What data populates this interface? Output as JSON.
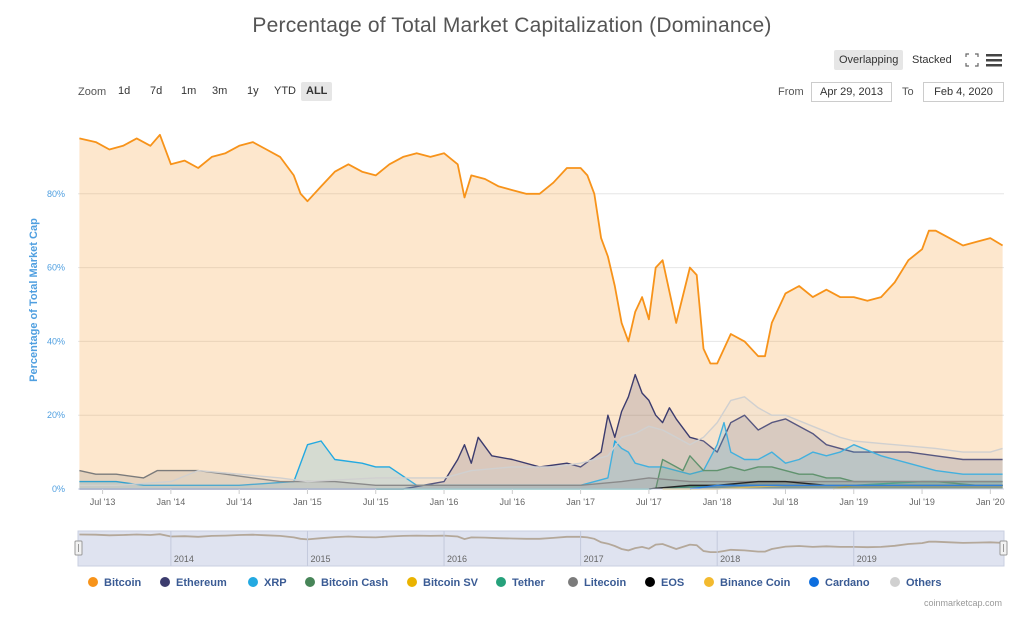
{
  "chart_data": {
    "type": "area",
    "title": "Percentage of Total Market Capitalization (Dominance)",
    "ylabel": "Percentage of Total Market Cap",
    "xlabel": "",
    "ylim": [
      0,
      100
    ],
    "y_ticks": [
      "0%",
      "20%",
      "40%",
      "60%",
      "80%"
    ],
    "y_tick_values": [
      0,
      20,
      40,
      60,
      80
    ],
    "x_ticks": [
      "Jul '13",
      "Jan '14",
      "Jul '14",
      "Jan '15",
      "Jul '15",
      "Jan '16",
      "Jul '16",
      "Jan '17",
      "Jul '17",
      "Jan '18",
      "Jul '18",
      "Jan '19",
      "Jul '19",
      "Jan '20"
    ],
    "x_tick_values": [
      2013.5,
      2014.0,
      2014.5,
      2015.0,
      2015.5,
      2016.0,
      2016.5,
      2017.0,
      2017.5,
      2018.0,
      2018.5,
      2019.0,
      2019.5,
      2020.0
    ],
    "xlim": [
      2013.32,
      2020.1
    ],
    "grid": true,
    "legend_position": "bottom",
    "series": [
      {
        "name": "Bitcoin",
        "color": "#f7931a",
        "x": [
          2013.33,
          2013.45,
          2013.55,
          2013.65,
          2013.75,
          2013.85,
          2013.92,
          2014.0,
          2014.1,
          2014.2,
          2014.3,
          2014.4,
          2014.5,
          2014.6,
          2014.7,
          2014.8,
          2014.9,
          2014.95,
          2015.0,
          2015.1,
          2015.2,
          2015.3,
          2015.4,
          2015.5,
          2015.6,
          2015.7,
          2015.8,
          2015.9,
          2016.0,
          2016.1,
          2016.15,
          2016.2,
          2016.3,
          2016.4,
          2016.5,
          2016.6,
          2016.7,
          2016.8,
          2016.9,
          2017.0,
          2017.05,
          2017.1,
          2017.15,
          2017.2,
          2017.25,
          2017.3,
          2017.35,
          2017.4,
          2017.45,
          2017.5,
          2017.55,
          2017.6,
          2017.7,
          2017.8,
          2017.85,
          2017.9,
          2017.95,
          2018.0,
          2018.05,
          2018.1,
          2018.2,
          2018.3,
          2018.35,
          2018.4,
          2018.5,
          2018.6,
          2018.7,
          2018.8,
          2018.9,
          2019.0,
          2019.1,
          2019.2,
          2019.3,
          2019.4,
          2019.5,
          2019.55,
          2019.6,
          2019.7,
          2019.8,
          2019.9,
          2020.0,
          2020.09
        ],
        "values": [
          95,
          94,
          92,
          93,
          95,
          93,
          96,
          88,
          89,
          87,
          90,
          91,
          93,
          94,
          92,
          90,
          85,
          80,
          78,
          82,
          86,
          88,
          86,
          85,
          88,
          90,
          91,
          90,
          91,
          88,
          79,
          85,
          84,
          82,
          81,
          80,
          80,
          83,
          87,
          87,
          85,
          80,
          68,
          63,
          55,
          45,
          40,
          48,
          52,
          46,
          60,
          62,
          45,
          60,
          58,
          38,
          34,
          34,
          38,
          42,
          40,
          36,
          36,
          45,
          53,
          55,
          52,
          54,
          52,
          52,
          51,
          52,
          56,
          62,
          65,
          70,
          70,
          68,
          66,
          67,
          68,
          66
        ]
      },
      {
        "name": "Ethereum",
        "color": "#3c3c6e",
        "x": [
          2013.33,
          2013.6,
          2014.0,
          2014.5,
          2015.0,
          2015.5,
          2015.7,
          2016.0,
          2016.1,
          2016.15,
          2016.2,
          2016.25,
          2016.35,
          2016.5,
          2016.7,
          2016.9,
          2017.0,
          2017.15,
          2017.2,
          2017.25,
          2017.3,
          2017.35,
          2017.4,
          2017.45,
          2017.5,
          2017.55,
          2017.6,
          2017.65,
          2017.7,
          2017.8,
          2017.9,
          2018.0,
          2018.1,
          2018.2,
          2018.3,
          2018.4,
          2018.5,
          2018.6,
          2018.7,
          2018.8,
          2018.9,
          2019.0,
          2019.2,
          2019.4,
          2019.6,
          2019.8,
          2020.0,
          2020.09
        ],
        "values": [
          0,
          0,
          0,
          0,
          0,
          0,
          0,
          2,
          8,
          12,
          7,
          14,
          9,
          8,
          6,
          7,
          6,
          10,
          20,
          14,
          21,
          25,
          31,
          26,
          24,
          20,
          18,
          22,
          19,
          14,
          13,
          10,
          18,
          20,
          16,
          18,
          19,
          17,
          15,
          12,
          11,
          10,
          10,
          10,
          9,
          8,
          8,
          8
        ]
      },
      {
        "name": "XRP",
        "color": "#23a9e1",
        "x": [
          2013.33,
          2013.6,
          2013.8,
          2014.0,
          2014.5,
          2014.9,
          2015.0,
          2015.1,
          2015.2,
          2015.4,
          2015.5,
          2015.6,
          2015.8,
          2016.0,
          2016.5,
          2017.0,
          2017.2,
          2017.25,
          2017.3,
          2017.35,
          2017.4,
          2017.5,
          2017.6,
          2017.7,
          2017.8,
          2017.9,
          2018.0,
          2018.05,
          2018.1,
          2018.2,
          2018.3,
          2018.4,
          2018.5,
          2018.6,
          2018.7,
          2018.8,
          2018.9,
          2019.0,
          2019.2,
          2019.4,
          2019.6,
          2019.8,
          2020.0,
          2020.09
        ],
        "values": [
          2,
          2,
          1,
          1,
          1,
          2,
          12,
          13,
          8,
          7,
          6,
          6,
          1,
          1,
          1,
          1,
          3,
          13,
          11,
          10,
          7,
          6,
          6,
          5,
          4,
          5,
          12,
          18,
          10,
          8,
          8,
          10,
          7,
          8,
          10,
          9,
          10,
          12,
          9,
          7,
          5,
          4,
          4,
          4
        ]
      },
      {
        "name": "Bitcoin Cash",
        "color": "#478558",
        "x": [
          2017.55,
          2017.6,
          2017.7,
          2017.75,
          2017.8,
          2017.9,
          2018.0,
          2018.1,
          2018.2,
          2018.3,
          2018.4,
          2018.5,
          2018.6,
          2018.7,
          2018.8,
          2018.9,
          2019.0,
          2019.3,
          2019.6,
          2019.9,
          2020.09
        ],
        "values": [
          0,
          8,
          6,
          5,
          9,
          5,
          5,
          6,
          5,
          6,
          6,
          5,
          4,
          4,
          3,
          3,
          2,
          2,
          2,
          1,
          1
        ]
      },
      {
        "name": "Bitcoin SV",
        "color": "#eab300",
        "x": [
          2018.85,
          2019.0,
          2019.3,
          2019.5,
          2019.7,
          2019.9,
          2020.09
        ],
        "values": [
          0,
          1,
          1,
          1,
          1,
          1,
          1
        ]
      },
      {
        "name": "Tether",
        "color": "#26a17b",
        "x": [
          2015.5,
          2016.0,
          2016.5,
          2017.0,
          2017.5,
          2018.0,
          2018.5,
          2019.0,
          2019.5,
          2020.0,
          2020.09
        ],
        "values": [
          0,
          0,
          0,
          0,
          0,
          1,
          1,
          1,
          2,
          2,
          2
        ]
      },
      {
        "name": "Litecoin",
        "color": "#7b7b7b",
        "x": [
          2013.33,
          2013.45,
          2013.6,
          2013.8,
          2013.9,
          2014.0,
          2014.2,
          2014.4,
          2014.6,
          2014.8,
          2015.0,
          2015.2,
          2015.5,
          2016.0,
          2016.5,
          2017.0,
          2017.3,
          2017.5,
          2017.8,
          2018.0,
          2018.5,
          2019.0,
          2019.5,
          2020.0,
          2020.09
        ],
        "values": [
          5,
          4,
          4,
          3,
          5,
          5,
          5,
          4,
          3,
          2,
          2,
          2,
          1,
          1,
          1,
          1,
          2,
          3,
          2,
          2,
          2,
          2,
          2,
          2,
          2
        ]
      },
      {
        "name": "EOS",
        "color": "#000000",
        "x": [
          2017.5,
          2017.8,
          2018.0,
          2018.3,
          2018.5,
          2018.8,
          2019.0,
          2019.5,
          2020.0,
          2020.09
        ],
        "values": [
          0,
          1,
          1,
          2,
          2,
          1,
          1,
          1,
          1,
          1
        ]
      },
      {
        "name": "Binance Coin",
        "color": "#f3ba2f",
        "x": [
          2017.6,
          2018.0,
          2018.5,
          2019.0,
          2019.5,
          2020.0,
          2020.09
        ],
        "values": [
          0,
          0,
          1,
          1,
          1,
          1,
          1
        ]
      },
      {
        "name": "Cardano",
        "color": "#0d6ede",
        "x": [
          2017.8,
          2018.0,
          2018.5,
          2019.0,
          2019.5,
          2020.0,
          2020.09
        ],
        "values": [
          0,
          1,
          1,
          1,
          1,
          1,
          1
        ]
      },
      {
        "name": "Others",
        "color": "#d0d0d0",
        "x": [
          2013.33,
          2013.6,
          2014.0,
          2014.2,
          2014.5,
          2014.8,
          2015.0,
          2015.5,
          2016.0,
          2016.2,
          2016.5,
          2016.8,
          2017.0,
          2017.2,
          2017.3,
          2017.4,
          2017.5,
          2017.6,
          2017.7,
          2017.8,
          2017.9,
          2018.0,
          2018.1,
          2018.2,
          2018.3,
          2018.4,
          2018.5,
          2018.7,
          2018.9,
          2019.0,
          2019.3,
          2019.6,
          2019.8,
          2020.0,
          2020.09
        ],
        "values": [
          1,
          1,
          2,
          5,
          4,
          3,
          2,
          3,
          3,
          5,
          6,
          6,
          7,
          9,
          14,
          15,
          17,
          16,
          14,
          12,
          14,
          18,
          24,
          25,
          22,
          20,
          20,
          17,
          14,
          13,
          12,
          11,
          10,
          10,
          11
        ]
      }
    ]
  },
  "ui": {
    "toggle_overlapping": "Overlapping",
    "toggle_stacked": "Stacked",
    "zoom_label": "Zoom",
    "zoom_buttons": [
      "1d",
      "7d",
      "1m",
      "3m",
      "1y",
      "YTD",
      "ALL"
    ],
    "zoom_active": "ALL",
    "from_label": "From",
    "from_value": "Apr 29, 2013",
    "to_label": "To",
    "to_value": "Feb 4, 2020",
    "navigator_labels": [
      "2014",
      "2015",
      "2016",
      "2017",
      "2018",
      "2019"
    ],
    "credit": "coinmarketcap.com"
  }
}
